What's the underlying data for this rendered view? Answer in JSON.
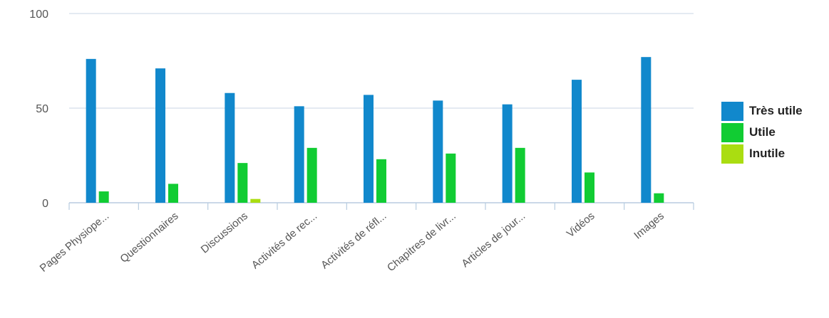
{
  "chart_data": {
    "type": "bar",
    "categories": [
      "Pages Physiope...",
      "Questionnaires",
      "Discussions",
      "Activités de rec...",
      "Activités de réfl...",
      "Chapitres de livr...",
      "Articles de jour...",
      "Vidéos",
      "Images"
    ],
    "series": [
      {
        "name": "Très utile",
        "color": "#1188cc",
        "values": [
          76,
          71,
          58,
          51,
          57,
          54,
          52,
          65,
          77
        ]
      },
      {
        "name": "Utile",
        "color": "#11cc33",
        "values": [
          6,
          10,
          21,
          29,
          23,
          26,
          29,
          16,
          5
        ]
      },
      {
        "name": "Inutile",
        "color": "#aadd11",
        "values": [
          0,
          0,
          2,
          0,
          0,
          0,
          0,
          0,
          0
        ]
      }
    ],
    "ylim": [
      0,
      100
    ],
    "yticks": [
      0,
      50,
      100
    ],
    "grid": true,
    "legend": "right",
    "title": "",
    "xlabel": "",
    "ylabel": ""
  }
}
